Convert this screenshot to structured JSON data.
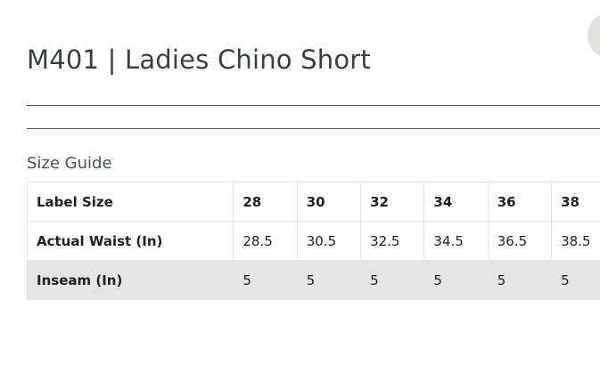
{
  "product": {
    "title": "M401 | Ladies Chino Short"
  },
  "size_guide": {
    "heading": "Size Guide",
    "header": {
      "label": "Label Size",
      "sizes": [
        "28",
        "30",
        "32",
        "34",
        "36",
        "38"
      ]
    },
    "rows": [
      {
        "label": "Actual Waist (In)",
        "values": [
          "28.5",
          "30.5",
          "32.5",
          "34.5",
          "36.5",
          "38.5"
        ]
      },
      {
        "label": "Inseam (In)",
        "values": [
          "5",
          "5",
          "5",
          "5",
          "5",
          "5"
        ]
      }
    ]
  },
  "colors": {
    "title_text": "#3b3f42",
    "shaded_row": "#e5e5e5",
    "corner_button": "#e0e1df"
  }
}
